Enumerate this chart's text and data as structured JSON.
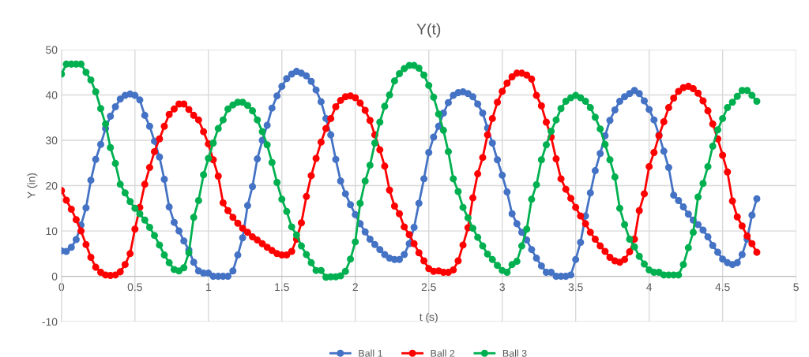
{
  "chart_data": {
    "type": "line",
    "title": "Y(t)",
    "xlabel": "t (s)",
    "ylabel": "Y (in)",
    "x": [
      0,
      0.033,
      0.067,
      0.1,
      0.133,
      0.167,
      0.2,
      0.233,
      0.267,
      0.3,
      0.333,
      0.367,
      0.4,
      0.433,
      0.467,
      0.5,
      0.533,
      0.567,
      0.6,
      0.633,
      0.667,
      0.7,
      0.733,
      0.767,
      0.8,
      0.833,
      0.867,
      0.9,
      0.933,
      0.967,
      1,
      1.033,
      1.067,
      1.1,
      1.133,
      1.167,
      1.2,
      1.233,
      1.267,
      1.3,
      1.333,
      1.367,
      1.4,
      1.433,
      1.467,
      1.5,
      1.533,
      1.567,
      1.6,
      1.633,
      1.667,
      1.7,
      1.733,
      1.767,
      1.8,
      1.833,
      1.867,
      1.9,
      1.933,
      1.967,
      2,
      2.033,
      2.067,
      2.1,
      2.133,
      2.167,
      2.2,
      2.233,
      2.267,
      2.3,
      2.333,
      2.367,
      2.4,
      2.433,
      2.467,
      2.5,
      2.533,
      2.567,
      2.6,
      2.633,
      2.667,
      2.7,
      2.733,
      2.767,
      2.8,
      2.833,
      2.867,
      2.9,
      2.933,
      2.967,
      3,
      3.033,
      3.067,
      3.1,
      3.133,
      3.167,
      3.2,
      3.233,
      3.267,
      3.3,
      3.333,
      3.367,
      3.4,
      3.433,
      3.467,
      3.5,
      3.533,
      3.567,
      3.6,
      3.633,
      3.667,
      3.7,
      3.733,
      3.767,
      3.8,
      3.833,
      3.867,
      3.9,
      3.933,
      3.967,
      4,
      4.033,
      4.067,
      4.1,
      4.133,
      4.167,
      4.2,
      4.233,
      4.267,
      4.3,
      4.333,
      4.367,
      4.4,
      4.433,
      4.467,
      4.5,
      4.533,
      4.567,
      4.6,
      4.633,
      4.667,
      4.7,
      4.733
    ],
    "series": [
      {
        "name": "Ball 1",
        "color": "#4472c4",
        "values": [
          5.6,
          5.5,
          6.4,
          8.1,
          11.3,
          15.1,
          21.2,
          25.8,
          29.1,
          32.6,
          35.3,
          37.4,
          39.1,
          39.9,
          40.2,
          39.9,
          38.9,
          35.5,
          33.1,
          29.8,
          26.3,
          21.4,
          15.3,
          11.9,
          10,
          7.8,
          5.8,
          3.1,
          1.2,
          0.7,
          0.7,
          0,
          0,
          0,
          0,
          1.2,
          4.7,
          8.5,
          15.6,
          19.8,
          25.9,
          30,
          33.3,
          37.1,
          39.8,
          41.9,
          43.6,
          44.6,
          45.2,
          44.8,
          44.2,
          43,
          41.1,
          38.5,
          34.8,
          31.2,
          25.8,
          21,
          18.2,
          15.8,
          13.6,
          11.6,
          9.8,
          8.2,
          7,
          5.9,
          4.8,
          4,
          3.7,
          3.7,
          4.8,
          7.2,
          10.8,
          16.1,
          21.5,
          27.3,
          30.7,
          33.1,
          36,
          38.3,
          39.9,
          40.5,
          40.7,
          40.3,
          39.6,
          38,
          36,
          32.7,
          29.4,
          25.7,
          22.3,
          18.6,
          13.8,
          11.6,
          9.7,
          8,
          5.9,
          4,
          2.3,
          0.9,
          0.9,
          0,
          0,
          0,
          0.3,
          3.7,
          7.5,
          13.3,
          18.4,
          23.3,
          27.1,
          31,
          34.4,
          36.7,
          38.6,
          39.6,
          40.3,
          41,
          40.3,
          38.7,
          36.8,
          34.5,
          31.2,
          27.6,
          24,
          17.9,
          16.7,
          15.3,
          13.7,
          12.4,
          11.4,
          10.2,
          8.7,
          6.8,
          5.3,
          3.8,
          3,
          2.6,
          3,
          4.8,
          8.2,
          13.5,
          17.1
        ]
      },
      {
        "name": "Ball 2",
        "color": "#ff0000",
        "values": [
          18.9,
          16.8,
          14.8,
          12.5,
          10,
          7,
          4.2,
          2,
          0.9,
          0.3,
          0.2,
          0.3,
          1,
          2.6,
          5,
          10.4,
          15.2,
          20.3,
          24,
          27.5,
          30.3,
          33.1,
          35.7,
          36.9,
          38,
          38,
          36.8,
          35.5,
          34.5,
          31.9,
          29.2,
          25.7,
          22.1,
          16.2,
          14.5,
          13,
          11.7,
          10.6,
          9.7,
          8.7,
          8,
          7.2,
          6.4,
          5.7,
          5,
          4.7,
          4.7,
          5.5,
          8.2,
          11.8,
          17.6,
          22.2,
          26,
          29.6,
          32.6,
          34.8,
          37.4,
          38.8,
          39.6,
          39.8,
          39.4,
          38.2,
          36.6,
          34.4,
          31.2,
          27.9,
          24.3,
          19,
          15.5,
          13.8,
          10.9,
          9.2,
          7.2,
          5.2,
          3.4,
          1.7,
          1.1,
          1.2,
          0.9,
          0.9,
          1.4,
          3.4,
          6.9,
          10.7,
          17.3,
          22.6,
          26.2,
          31.2,
          34.8,
          38.4,
          40.8,
          42.6,
          44,
          44.8,
          44.8,
          44.4,
          43.5,
          39.9,
          37.6,
          34,
          30.7,
          25.9,
          21.5,
          19.2,
          17.2,
          15.2,
          13.3,
          11.6,
          9.7,
          8.2,
          6.7,
          5.5,
          4.2,
          3.4,
          3.1,
          3.7,
          5.4,
          8.2,
          14.5,
          18.2,
          24.2,
          27.3,
          31,
          34.1,
          37.2,
          39.3,
          40.8,
          41.6,
          41.9,
          41.4,
          40.4,
          38.7,
          36.5,
          33.6,
          30.3,
          26.7,
          23,
          16.6,
          13.1,
          11.1,
          8.9,
          7.2,
          5.3
        ]
      },
      {
        "name": "Ball 3",
        "color": "#00b050",
        "values": [
          44.6,
          46.8,
          46.8,
          46.8,
          46.8,
          45,
          43.3,
          40.7,
          37,
          33.6,
          28.4,
          24.9,
          20.3,
          18.4,
          16.5,
          15,
          13.8,
          12.4,
          10.8,
          9,
          6.9,
          4.7,
          3,
          1.5,
          1.2,
          1.9,
          5.2,
          13,
          16.7,
          22.4,
          26,
          29.4,
          32.6,
          34.5,
          36.9,
          37.8,
          38.4,
          38.4,
          37.7,
          36.5,
          34.5,
          31.9,
          29,
          25.1,
          20.7,
          17,
          14.3,
          10.9,
          9.1,
          6.7,
          4.8,
          3,
          1.3,
          1.3,
          -0.2,
          -0.1,
          -0.1,
          0.1,
          1.1,
          3.8,
          7.6,
          16.1,
          21,
          24.5,
          29.4,
          34,
          37.5,
          40,
          43.1,
          44.7,
          45.8,
          46.5,
          46.5,
          45.9,
          44.4,
          42.1,
          39.5,
          35.8,
          32.2,
          27.5,
          21.5,
          18.7,
          15.2,
          12.9,
          10.6,
          8.6,
          6.7,
          4.9,
          3.7,
          2.4,
          1.3,
          0.9,
          2.6,
          3.3,
          6.7,
          10.4,
          17,
          20.2,
          25.7,
          29,
          32,
          34.5,
          37,
          38.6,
          39.4,
          39.9,
          39.4,
          38.6,
          37.2,
          35.1,
          32.5,
          29.1,
          25.7,
          21.9,
          15,
          11.4,
          8.2,
          6.5,
          4.4,
          2.7,
          1.4,
          0.9,
          0.9,
          0.3,
          0.3,
          0.3,
          0.3,
          2.6,
          6.3,
          9.7,
          17.5,
          20.5,
          24.2,
          28.7,
          32.3,
          34.8,
          37.2,
          38.4,
          39.7,
          41,
          41,
          39.9,
          38.6
        ]
      }
    ],
    "xlim": [
      0,
      5
    ],
    "xticks": [
      0,
      0.5,
      1,
      1.5,
      2,
      2.5,
      3,
      3.5,
      4,
      4.5,
      5
    ],
    "ylim": [
      -10,
      50
    ],
    "yticks": [
      -10,
      0,
      10,
      20,
      30,
      40,
      50
    ],
    "grid": true,
    "legend": "bottom",
    "marker": "circle",
    "line_style": "solid"
  }
}
